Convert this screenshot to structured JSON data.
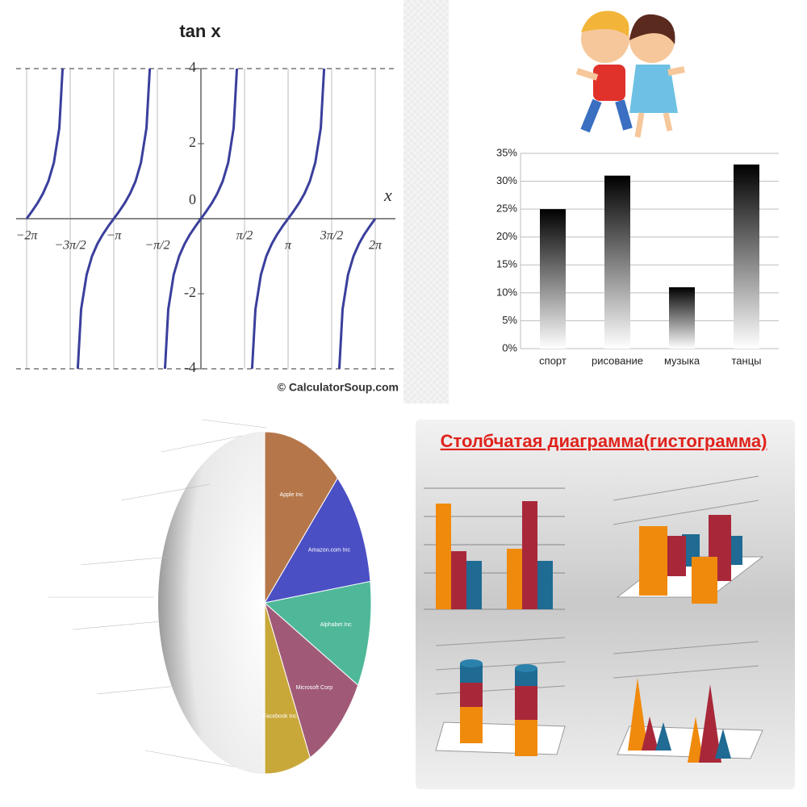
{
  "chart_data": [
    {
      "type": "line",
      "title": "tan x",
      "x_label": "x",
      "credit": "© CalculatorSoup.com",
      "x": [
        -6.283,
        -6.087,
        -5.89,
        -5.694,
        -5.498,
        -5.301,
        -5.105,
        -4.909,
        -4.712,
        -4.516,
        -4.32,
        -4.123,
        -3.927,
        -3.731,
        -3.534,
        -3.338,
        -3.142,
        -2.945,
        -2.749,
        -2.553,
        -2.356,
        -2.16,
        -1.963,
        -1.767,
        -1.571,
        -1.374,
        -1.178,
        -0.982,
        -0.785,
        -0.589,
        -0.393,
        -0.196,
        0,
        0.196,
        0.393,
        0.589,
        0.785,
        0.982,
        1.178,
        1.374,
        1.571,
        1.767,
        1.963,
        2.16,
        2.356,
        2.553,
        2.749,
        2.945,
        3.142,
        3.338,
        3.534,
        3.731,
        3.927,
        4.123,
        4.32,
        4.516,
        4.712,
        4.909,
        5.105,
        5.301,
        5.498,
        5.694,
        5.89,
        6.087,
        6.283
      ],
      "series": [
        {
          "color": "#3a3f9c",
          "values": [
            0,
            0.199,
            0.414,
            0.668,
            1,
            1.497,
            2.414,
            5.027,
            null,
            -5.027,
            -2.414,
            -1.497,
            -1,
            -0.668,
            -0.414,
            -0.199,
            0,
            0.199,
            0.414,
            0.668,
            1,
            1.497,
            2.414,
            5.027,
            null,
            -5.027,
            -2.414,
            -1.497,
            -1,
            -0.668,
            -0.414,
            -0.199,
            0,
            0.199,
            0.414,
            0.668,
            1,
            1.497,
            2.414,
            5.027,
            null,
            -5.027,
            -2.414,
            -1.497,
            -1,
            -0.668,
            -0.414,
            -0.199,
            0,
            0.199,
            0.414,
            0.668,
            1,
            1.497,
            2.414,
            5.027,
            null,
            -5.027,
            -2.414,
            -1.497,
            -1,
            -0.668,
            -0.414,
            -0.199,
            0
          ]
        }
      ],
      "xlim": [
        -6.283,
        6.283
      ],
      "ylim": [
        -4,
        4
      ],
      "xticks": [
        {
          "value": -6.283,
          "label": "−2π"
        },
        {
          "value": -4.712,
          "label": "−3π/2"
        },
        {
          "value": -3.142,
          "label": "−π"
        },
        {
          "value": -1.571,
          "label": "−π/2"
        },
        {
          "value": 1.571,
          "label": "π/2"
        },
        {
          "value": 3.142,
          "label": "π"
        },
        {
          "value": 4.712,
          "label": "3π/2"
        },
        {
          "value": 6.283,
          "label": "2π"
        }
      ],
      "yticks": [
        4,
        2,
        0,
        -2,
        -4
      ],
      "grid": true
    },
    {
      "type": "bar",
      "categories": [
        "спорт",
        "рисование",
        "музыка",
        "танцы"
      ],
      "values": [
        25,
        31,
        11,
        33
      ],
      "color": "#000000",
      "ylim": [
        0,
        35
      ],
      "yticks": [
        {
          "value": 0,
          "label": "0%"
        },
        {
          "value": 5,
          "label": "5%"
        },
        {
          "value": 10,
          "label": "10%"
        },
        {
          "value": 15,
          "label": "15%"
        },
        {
          "value": 20,
          "label": "20%"
        },
        {
          "value": 25,
          "label": "25%"
        },
        {
          "value": 30,
          "label": "30%"
        },
        {
          "value": 35,
          "label": "35%"
        }
      ],
      "grid": true
    },
    {
      "type": "pie",
      "categories": [
        "Apple Inc",
        "Amazon.com Inc",
        "Alphabet Inc",
        "Microsoft Corp",
        "Facebook Inc."
      ],
      "values": [
        12,
        11,
        10,
        10,
        7
      ],
      "colors": [
        "#b5774a",
        "#4a4fc4",
        "#4fb898",
        "#a05a78",
        "#c9a83a"
      ]
    }
  ],
  "illustration": {
    "title": "Столбчатая диаграмма(гистограмма)"
  }
}
